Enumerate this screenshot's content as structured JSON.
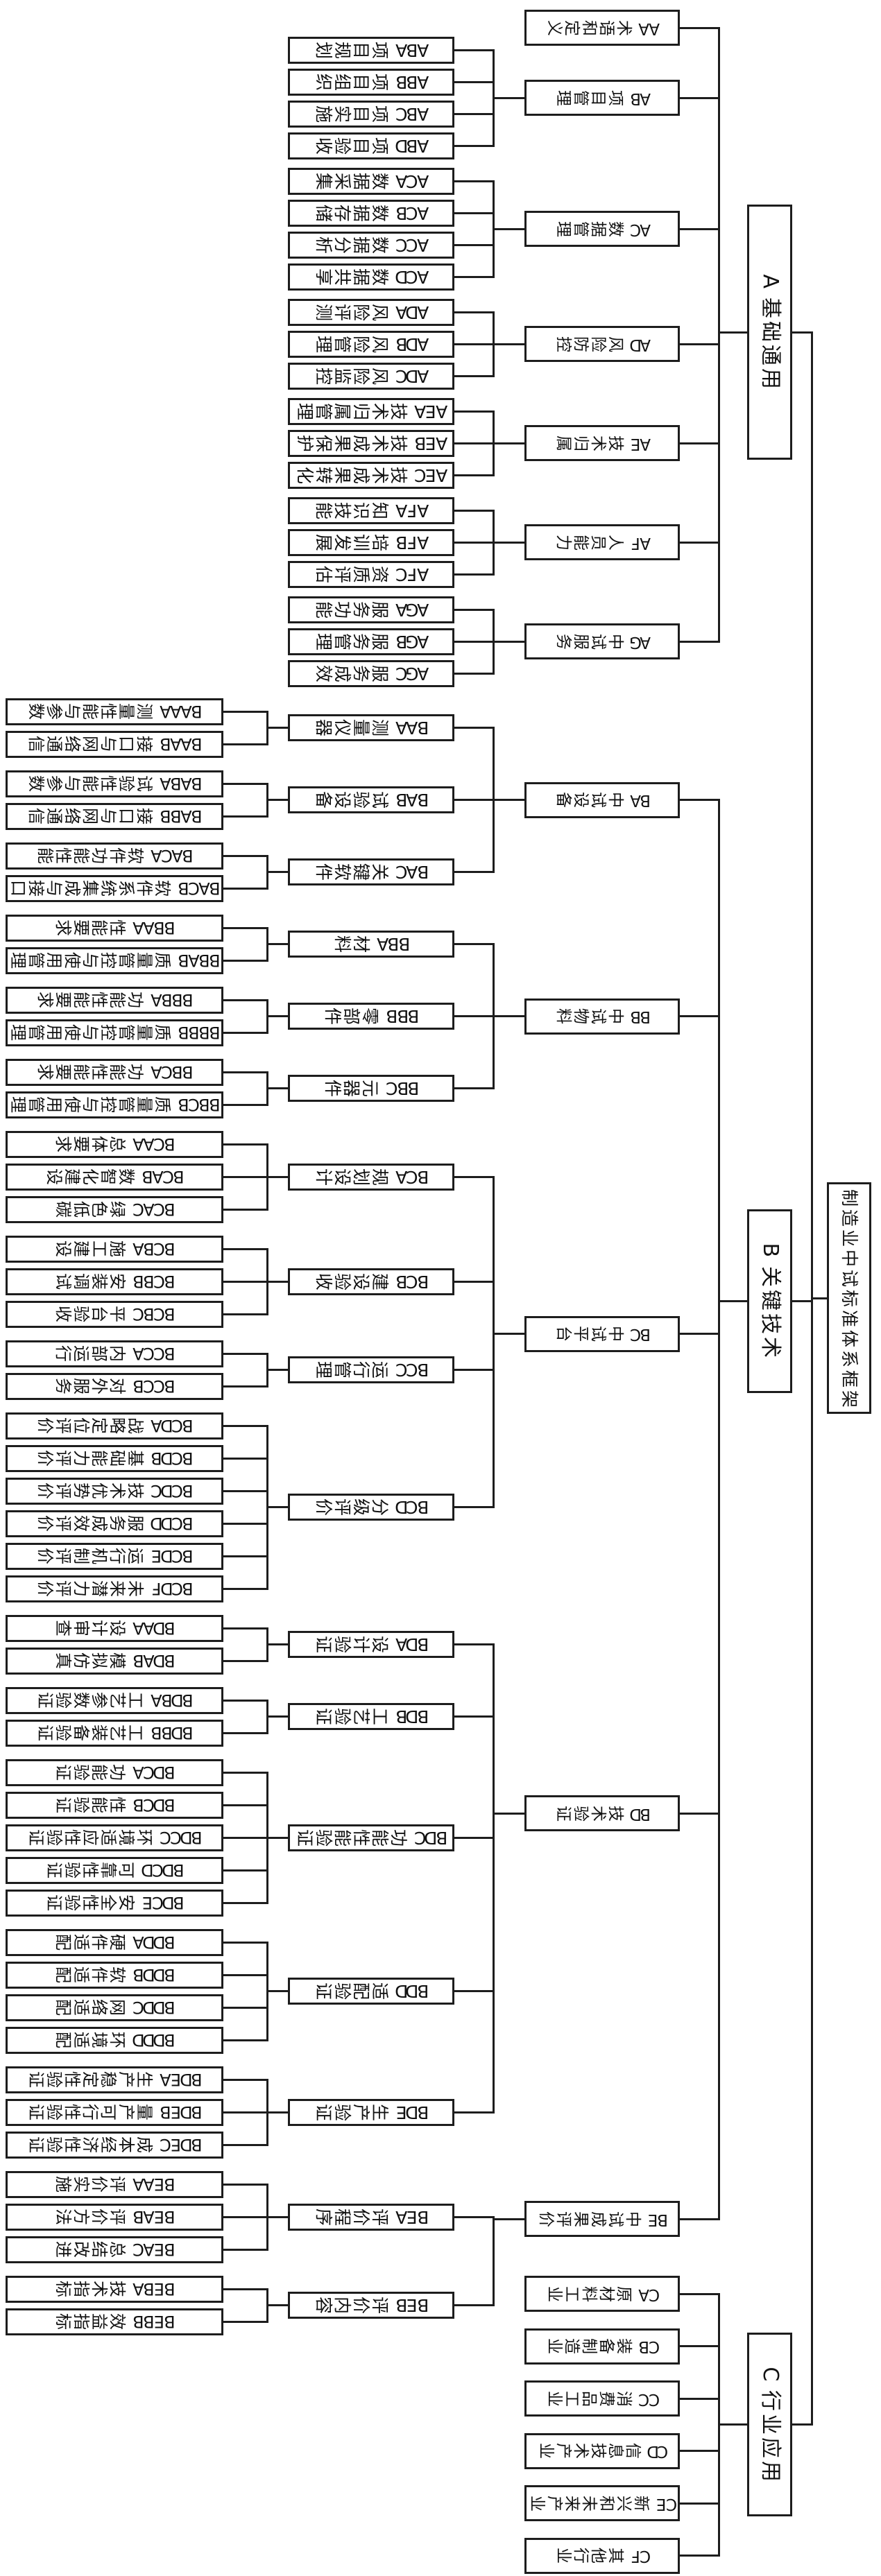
{
  "diagram": {
    "type": "tree",
    "orientation": "rotated-90-clockwise, root at right",
    "colors": {
      "line": "#1d1d1d",
      "background": "#ffffff",
      "text": "#111111"
    },
    "tree": {
      "text": "制造业中试标准体系框架",
      "children": [
        {
          "text": "A 基础通用",
          "children": [
            {
              "text": "AA 术语和定义",
              "children": []
            },
            {
              "text": "AB 项目管理",
              "children": [
                {
                  "text": "ABA 项目规划",
                  "children": []
                },
                {
                  "text": "ABB 项目组织",
                  "children": []
                },
                {
                  "text": "ABC 项目实施",
                  "children": []
                },
                {
                  "text": "ABD 项目验收",
                  "children": []
                }
              ]
            },
            {
              "text": "AC 数据管理",
              "children": [
                {
                  "text": "ACA 数据采集",
                  "children": []
                },
                {
                  "text": "ACB 数据存储",
                  "children": []
                },
                {
                  "text": "ACC 数据分析",
                  "children": []
                },
                {
                  "text": "ACD 数据共享",
                  "children": []
                }
              ]
            },
            {
              "text": "AD 风险防控",
              "children": [
                {
                  "text": "ADA 风险评测",
                  "children": []
                },
                {
                  "text": "ADB 风险管理",
                  "children": []
                },
                {
                  "text": "ADC 风险监控",
                  "children": []
                }
              ]
            },
            {
              "text": "AE 技术归属",
              "children": [
                {
                  "text": "AEA 技术归属管理",
                  "children": []
                },
                {
                  "text": "AEB 技术成果保护",
                  "children": []
                },
                {
                  "text": "AEC 技术成果转化",
                  "children": []
                }
              ]
            },
            {
              "text": "AF 人员能力",
              "children": [
                {
                  "text": "AFA 知识技能",
                  "children": []
                },
                {
                  "text": "AFB 培训发展",
                  "children": []
                },
                {
                  "text": "AFC 资质评估",
                  "children": []
                }
              ]
            },
            {
              "text": "AG 中试服务",
              "children": [
                {
                  "text": "AGA 服务功能",
                  "children": []
                },
                {
                  "text": "AGB 服务管理",
                  "children": []
                },
                {
                  "text": "AGC 服务成效",
                  "children": []
                }
              ]
            }
          ]
        },
        {
          "text": "B 关键技术",
          "children": [
            {
              "text": "BA 中试设备",
              "children": [
                {
                  "text": "BAA 测量仪器",
                  "children": [
                    {
                      "text": "BAAA 测量性能与参数",
                      "children": []
                    },
                    {
                      "text": "BAAB 接口与网络通信",
                      "children": []
                    }
                  ]
                },
                {
                  "text": "BAB 试验设备",
                  "children": [
                    {
                      "text": "BABA 试验性能与参数",
                      "children": []
                    },
                    {
                      "text": "BABB 接口与网络通信",
                      "children": []
                    }
                  ]
                },
                {
                  "text": "BAC 关键软件",
                  "children": [
                    {
                      "text": "BACA 软件功能性能",
                      "children": []
                    },
                    {
                      "text": "BACB 软件系统集成与接口",
                      "children": []
                    }
                  ]
                }
              ]
            },
            {
              "text": "BB 中试物料",
              "children": [
                {
                  "text": "BBA 材料",
                  "children": [
                    {
                      "text": "BBAA 性能要求",
                      "children": []
                    },
                    {
                      "text": "BBAB 质量管控与使用管理",
                      "children": []
                    }
                  ]
                },
                {
                  "text": "BBB 零部件",
                  "children": [
                    {
                      "text": "BBBA 功能性能要求",
                      "children": []
                    },
                    {
                      "text": "BBBB 质量管控与使用管理",
                      "children": []
                    }
                  ]
                },
                {
                  "text": "BBC 元器件",
                  "children": [
                    {
                      "text": "BBCA 功能性能要求",
                      "children": []
                    },
                    {
                      "text": "BBCB 质量管控与使用管理",
                      "children": []
                    }
                  ]
                }
              ]
            },
            {
              "text": "BC 中试平台",
              "children": [
                {
                  "text": "BCA 规划设计",
                  "children": [
                    {
                      "text": "BCAA 总体要求",
                      "children": []
                    },
                    {
                      "text": "BCAB 数智化建设",
                      "children": []
                    },
                    {
                      "text": "BCAC 绿色低碳",
                      "children": []
                    }
                  ]
                },
                {
                  "text": "BCB 建设验收",
                  "children": [
                    {
                      "text": "BCBA 施工建设",
                      "children": []
                    },
                    {
                      "text": "BCBB 安装调试",
                      "children": []
                    },
                    {
                      "text": "BCBC 平台验收",
                      "children": []
                    }
                  ]
                },
                {
                  "text": "BCC 运行管理",
                  "children": [
                    {
                      "text": "BCCA 内部运行",
                      "children": []
                    },
                    {
                      "text": "BCCB 对外服务",
                      "children": []
                    }
                  ]
                },
                {
                  "text": "BCD 分级评价",
                  "children": [
                    {
                      "text": "BCDA 战略定位评价",
                      "children": []
                    },
                    {
                      "text": "BCDB 基础能力评价",
                      "children": []
                    },
                    {
                      "text": "BCDC 技术优势评价",
                      "children": []
                    },
                    {
                      "text": "BCDD 服务成效评价",
                      "children": []
                    },
                    {
                      "text": "BCDE 运行机制评价",
                      "children": []
                    },
                    {
                      "text": "BCDF 未来潜力评价",
                      "children": []
                    }
                  ]
                }
              ]
            },
            {
              "text": "BD 技术验证",
              "children": [
                {
                  "text": "BDA 设计验证",
                  "children": [
                    {
                      "text": "BDAA 设计审查",
                      "children": []
                    },
                    {
                      "text": "BDAB 模拟仿真",
                      "children": []
                    }
                  ]
                },
                {
                  "text": "BDB 工艺验证",
                  "children": [
                    {
                      "text": "BDBA 工艺参数验证",
                      "children": []
                    },
                    {
                      "text": "BDBB 工艺装备验证",
                      "children": []
                    }
                  ]
                },
                {
                  "text": "BDC 功能性能验证",
                  "children": [
                    {
                      "text": "BDCA 功能验证",
                      "children": []
                    },
                    {
                      "text": "BDCB 性能验证",
                      "children": []
                    },
                    {
                      "text": "BDCC 环境适应性验证",
                      "children": []
                    },
                    {
                      "text": "BDCD 可靠性验证",
                      "children": []
                    },
                    {
                      "text": "BDCE 安全性验证",
                      "children": []
                    }
                  ]
                },
                {
                  "text": "BDD 适配验证",
                  "children": [
                    {
                      "text": "BDDA 硬件适配",
                      "children": []
                    },
                    {
                      "text": "BDDB 软件适配",
                      "children": []
                    },
                    {
                      "text": "BDDC 网络适配",
                      "children": []
                    },
                    {
                      "text": "BDDD 环境适配",
                      "children": []
                    }
                  ]
                },
                {
                  "text": "BDE 生产验证",
                  "children": [
                    {
                      "text": "BDEA 生产稳定性验证",
                      "children": []
                    },
                    {
                      "text": "BDEB 量产可行性验证",
                      "children": []
                    },
                    {
                      "text": "BDEC 成本经济性验证",
                      "children": []
                    }
                  ]
                }
              ]
            },
            {
              "text": "BE 中试成果评价",
              "children": [
                {
                  "text": "BEA 评价程序",
                  "children": [
                    {
                      "text": "BEAA 评价实施",
                      "children": []
                    },
                    {
                      "text": "BEAB 评价方法",
                      "children": []
                    },
                    {
                      "text": "BEAC 总结改进",
                      "children": []
                    }
                  ]
                },
                {
                  "text": "BEB 评价内容",
                  "children": [
                    {
                      "text": "BEBA 技术指标",
                      "children": []
                    },
                    {
                      "text": "BEBB 效益指标",
                      "children": []
                    }
                  ]
                }
              ]
            }
          ]
        },
        {
          "text": "C 行业应用",
          "children": [
            {
              "text": "CA 原材料工业",
              "children": []
            },
            {
              "text": "CB 装备制造业",
              "children": []
            },
            {
              "text": "CC 消费品工业",
              "children": []
            },
            {
              "text": "CD 信息技术产业",
              "children": []
            },
            {
              "text": "CE 新兴和未来产业",
              "children": []
            },
            {
              "text": "CF 其他行业",
              "children": []
            }
          ]
        }
      ]
    }
  }
}
